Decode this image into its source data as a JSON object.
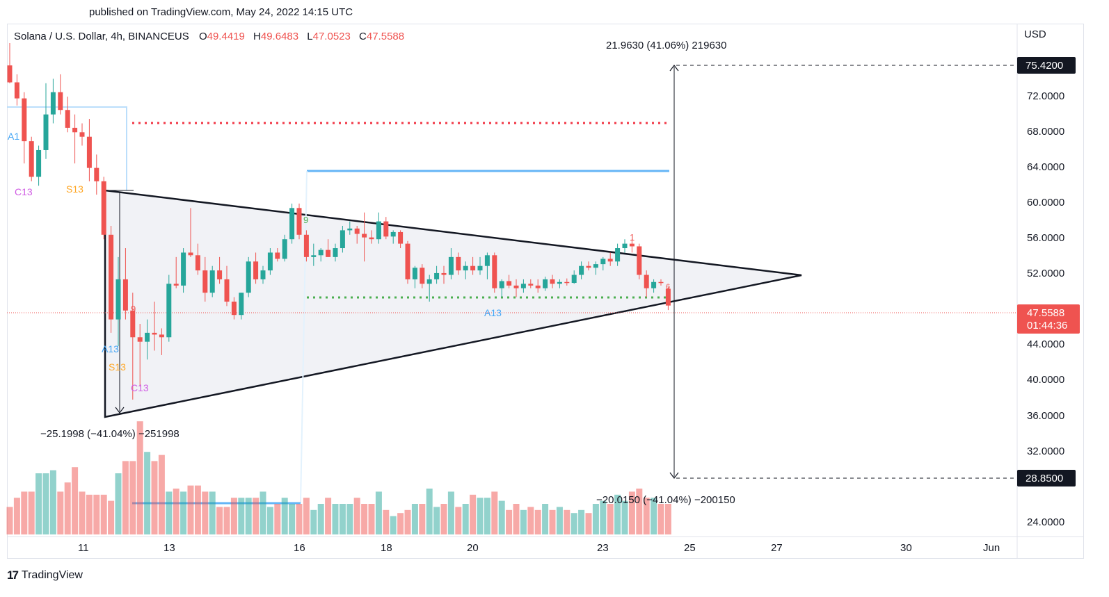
{
  "header": {
    "published": "published on TradingView.com, May 24, 2022 14:15 UTC"
  },
  "legend": {
    "symbol": "Solana / U.S. Dollar, 4h, BINANCEUS",
    "o_label": "O",
    "o_value": "49.4419",
    "h_label": "H",
    "h_value": "49.6483",
    "l_label": "L",
    "l_value": "47.0523",
    "c_label": "C",
    "c_value": "47.5588"
  },
  "price_axis": {
    "currency": "USD",
    "ticks": [
      "72.0000",
      "68.0000",
      "64.0000",
      "60.0000",
      "56.0000",
      "52.0000",
      "44.0000",
      "40.0000",
      "36.0000",
      "32.0000",
      "24.0000"
    ],
    "upper_target_label": "75.4200",
    "lower_target_label": "28.8500",
    "last_price_label": "47.5588",
    "countdown_label": "01:44:36"
  },
  "time_axis": {
    "ticks": [
      "11",
      "13",
      "16",
      "18",
      "20",
      "23",
      "25",
      "27",
      "30",
      "Jun"
    ]
  },
  "annotations": {
    "upper_measure": "21.9630 (41.06%) 219630",
    "lower_measure": "−20.0150 (−41.04%) −200150",
    "left_measure": "−25.1998 (−41.04%) −251998",
    "td_labels": [
      {
        "text": "A1",
        "color": "#42a5f5"
      },
      {
        "text": "C13",
        "color": "#d05ce3"
      },
      {
        "text": "S13",
        "color": "#ffa726"
      },
      {
        "text": "A13",
        "color": "#42a5f5"
      },
      {
        "text": "S13",
        "color": "#ffa726"
      },
      {
        "text": "C13",
        "color": "#d05ce3"
      },
      {
        "text": "9",
        "color": "#ef5350"
      },
      {
        "text": "9",
        "color": "#4caf50"
      },
      {
        "text": "A13",
        "color": "#42a5f5"
      },
      {
        "text": "1",
        "color": "#ef5350"
      },
      {
        "text": "6",
        "color": "#ef5350"
      }
    ]
  },
  "branding": {
    "logo_text": "TradingView"
  },
  "colors": {
    "up": "#26a69a",
    "down": "#ef5350",
    "resistance": "#f23645",
    "support": "#4caf50",
    "level_blue": "#64b5f6"
  },
  "chart_data": {
    "type": "candlestick",
    "title": "Solana / U.S. Dollar, 4h, BINANCEUS",
    "ylabel": "USD",
    "ylim": [
      22.5,
      79.5
    ],
    "x_ticks": [
      "11",
      "13",
      "16",
      "18",
      "20",
      "23",
      "25",
      "27",
      "30",
      "Jun"
    ],
    "candles": [
      {
        "o": 74.5,
        "h": 77.0,
        "l": 72.5,
        "c": 72.6
      },
      {
        "o": 72.6,
        "h": 73.5,
        "l": 70.0,
        "c": 70.8
      },
      {
        "o": 70.8,
        "h": 71.5,
        "l": 63.5,
        "c": 66.0
      },
      {
        "o": 66.0,
        "h": 66.5,
        "l": 61.5,
        "c": 62.0
      },
      {
        "o": 62.0,
        "h": 65.5,
        "l": 61.0,
        "c": 65.0
      },
      {
        "o": 65.0,
        "h": 72.5,
        "l": 64.0,
        "c": 69.0
      },
      {
        "o": 69.0,
        "h": 73.0,
        "l": 68.0,
        "c": 71.5
      },
      {
        "o": 71.5,
        "h": 73.5,
        "l": 69.0,
        "c": 69.5
      },
      {
        "o": 69.5,
        "h": 71.0,
        "l": 67.0,
        "c": 67.5
      },
      {
        "o": 67.5,
        "h": 69.0,
        "l": 63.5,
        "c": 67.0
      },
      {
        "o": 67.0,
        "h": 68.0,
        "l": 65.5,
        "c": 66.5
      },
      {
        "o": 66.5,
        "h": 68.5,
        "l": 61.5,
        "c": 63.0
      },
      {
        "o": 63.0,
        "h": 64.5,
        "l": 60.0,
        "c": 61.5
      },
      {
        "o": 61.5,
        "h": 62.0,
        "l": 55.0,
        "c": 55.5
      },
      {
        "o": 55.5,
        "h": 56.5,
        "l": 44.5,
        "c": 46.0
      },
      {
        "o": 46.0,
        "h": 53.0,
        "l": 43.0,
        "c": 50.5
      },
      {
        "o": 50.5,
        "h": 54.0,
        "l": 46.0,
        "c": 47.0
      },
      {
        "o": 47.0,
        "h": 49.0,
        "l": 37.0,
        "c": 44.0
      },
      {
        "o": 44.0,
        "h": 45.5,
        "l": 38.5,
        "c": 43.5
      },
      {
        "o": 43.5,
        "h": 46.0,
        "l": 41.5,
        "c": 44.5
      },
      {
        "o": 44.5,
        "h": 48.0,
        "l": 42.5,
        "c": 44.3
      },
      {
        "o": 44.3,
        "h": 45.0,
        "l": 42.0,
        "c": 44.0
      },
      {
        "o": 44.0,
        "h": 51.0,
        "l": 43.5,
        "c": 50.0
      },
      {
        "o": 50.0,
        "h": 53.0,
        "l": 49.5,
        "c": 49.8
      },
      {
        "o": 49.8,
        "h": 54.0,
        "l": 49.0,
        "c": 53.5
      },
      {
        "o": 53.5,
        "h": 58.5,
        "l": 53.0,
        "c": 53.2
      },
      {
        "o": 53.2,
        "h": 54.5,
        "l": 51.0,
        "c": 51.5
      },
      {
        "o": 51.5,
        "h": 53.0,
        "l": 48.0,
        "c": 49.0
      },
      {
        "o": 49.0,
        "h": 52.0,
        "l": 48.5,
        "c": 51.5
      },
      {
        "o": 51.5,
        "h": 53.0,
        "l": 50.0,
        "c": 50.5
      },
      {
        "o": 50.5,
        "h": 52.0,
        "l": 47.5,
        "c": 48.0
      },
      {
        "o": 48.0,
        "h": 48.5,
        "l": 46.0,
        "c": 46.5
      },
      {
        "o": 46.5,
        "h": 49.0,
        "l": 46.0,
        "c": 49.0
      },
      {
        "o": 49.0,
        "h": 53.0,
        "l": 48.5,
        "c": 52.5
      },
      {
        "o": 52.5,
        "h": 53.5,
        "l": 50.0,
        "c": 50.5
      },
      {
        "o": 50.5,
        "h": 52.0,
        "l": 50.0,
        "c": 51.5
      },
      {
        "o": 51.5,
        "h": 54.0,
        "l": 51.0,
        "c": 53.5
      },
      {
        "o": 53.5,
        "h": 54.0,
        "l": 52.5,
        "c": 52.8
      },
      {
        "o": 52.8,
        "h": 55.5,
        "l": 52.5,
        "c": 55.0
      },
      {
        "o": 55.0,
        "h": 59.0,
        "l": 54.5,
        "c": 58.5
      },
      {
        "o": 58.5,
        "h": 59.0,
        "l": 55.0,
        "c": 55.5
      },
      {
        "o": 55.5,
        "h": 56.0,
        "l": 52.5,
        "c": 53.0
      },
      {
        "o": 53.0,
        "h": 54.5,
        "l": 52.0,
        "c": 53.2
      },
      {
        "o": 53.2,
        "h": 54.0,
        "l": 52.5,
        "c": 53.8
      },
      {
        "o": 53.8,
        "h": 55.0,
        "l": 53.0,
        "c": 53.0
      },
      {
        "o": 53.0,
        "h": 54.5,
        "l": 52.5,
        "c": 54.0
      },
      {
        "o": 54.0,
        "h": 56.5,
        "l": 53.5,
        "c": 56.0
      },
      {
        "o": 56.0,
        "h": 57.0,
        "l": 55.5,
        "c": 56.2
      },
      {
        "o": 56.2,
        "h": 56.5,
        "l": 54.5,
        "c": 55.6
      },
      {
        "o": 55.6,
        "h": 58.0,
        "l": 52.5,
        "c": 55.2
      },
      {
        "o": 55.2,
        "h": 56.0,
        "l": 54.5,
        "c": 55.0
      },
      {
        "o": 55.0,
        "h": 58.0,
        "l": 54.5,
        "c": 57.0
      },
      {
        "o": 57.0,
        "h": 57.5,
        "l": 55.0,
        "c": 55.3
      },
      {
        "o": 55.3,
        "h": 56.0,
        "l": 54.5,
        "c": 55.8
      },
      {
        "o": 55.8,
        "h": 56.0,
        "l": 54.0,
        "c": 54.5
      },
      {
        "o": 54.5,
        "h": 54.8,
        "l": 50.0,
        "c": 50.5
      },
      {
        "o": 50.5,
        "h": 52.0,
        "l": 49.5,
        "c": 51.8
      },
      {
        "o": 51.8,
        "h": 52.2,
        "l": 49.5,
        "c": 50.0
      },
      {
        "o": 50.0,
        "h": 51.0,
        "l": 48.0,
        "c": 50.5
      },
      {
        "o": 50.5,
        "h": 52.0,
        "l": 50.0,
        "c": 51.2
      },
      {
        "o": 51.2,
        "h": 52.0,
        "l": 50.0,
        "c": 51.0
      },
      {
        "o": 51.0,
        "h": 54.0,
        "l": 50.5,
        "c": 53.0
      },
      {
        "o": 53.0,
        "h": 53.5,
        "l": 51.0,
        "c": 51.5
      },
      {
        "o": 51.5,
        "h": 52.5,
        "l": 50.5,
        "c": 52.0
      },
      {
        "o": 52.0,
        "h": 53.0,
        "l": 51.0,
        "c": 51.5
      },
      {
        "o": 51.5,
        "h": 53.0,
        "l": 51.0,
        "c": 52.0
      },
      {
        "o": 52.0,
        "h": 53.5,
        "l": 50.5,
        "c": 53.2
      },
      {
        "o": 53.2,
        "h": 53.5,
        "l": 49.0,
        "c": 49.5
      },
      {
        "o": 49.5,
        "h": 50.5,
        "l": 48.5,
        "c": 50.3
      },
      {
        "o": 50.3,
        "h": 51.0,
        "l": 49.5,
        "c": 49.8
      },
      {
        "o": 49.8,
        "h": 50.5,
        "l": 48.5,
        "c": 49.5
      },
      {
        "o": 49.5,
        "h": 50.5,
        "l": 49.0,
        "c": 50.0
      },
      {
        "o": 50.0,
        "h": 50.5,
        "l": 49.5,
        "c": 49.8
      },
      {
        "o": 49.8,
        "h": 50.5,
        "l": 49.0,
        "c": 49.5
      },
      {
        "o": 49.5,
        "h": 50.8,
        "l": 49.2,
        "c": 50.5
      },
      {
        "o": 50.5,
        "h": 51.0,
        "l": 49.5,
        "c": 50.0
      },
      {
        "o": 50.0,
        "h": 50.5,
        "l": 49.5,
        "c": 50.2
      },
      {
        "o": 50.2,
        "h": 50.6,
        "l": 49.8,
        "c": 50.1
      },
      {
        "o": 50.1,
        "h": 51.5,
        "l": 50.0,
        "c": 51.0
      },
      {
        "o": 51.0,
        "h": 52.5,
        "l": 50.5,
        "c": 52.0
      },
      {
        "o": 52.0,
        "h": 52.5,
        "l": 51.5,
        "c": 51.8
      },
      {
        "o": 51.8,
        "h": 52.5,
        "l": 51.0,
        "c": 52.2
      },
      {
        "o": 52.2,
        "h": 53.0,
        "l": 51.5,
        "c": 52.8
      },
      {
        "o": 52.8,
        "h": 53.5,
        "l": 52.0,
        "c": 52.5
      },
      {
        "o": 52.5,
        "h": 54.5,
        "l": 52.0,
        "c": 54.0
      },
      {
        "o": 54.0,
        "h": 55.0,
        "l": 53.5,
        "c": 54.5
      },
      {
        "o": 54.5,
        "h": 55.0,
        "l": 53.5,
        "c": 54.2
      },
      {
        "o": 54.2,
        "h": 54.5,
        "l": 50.5,
        "c": 51.0
      },
      {
        "o": 51.0,
        "h": 51.5,
        "l": 48.5,
        "c": 49.5
      },
      {
        "o": 49.5,
        "h": 50.5,
        "l": 49.0,
        "c": 50.2
      },
      {
        "o": 50.2,
        "h": 50.5,
        "l": 49.8,
        "c": 50.1
      },
      {
        "o": 49.4419,
        "h": 49.6483,
        "l": 47.0523,
        "c": 47.5588
      }
    ],
    "volume": [
      9,
      12,
      14,
      14,
      20,
      20,
      21,
      14,
      17,
      22,
      14,
      13,
      13,
      13,
      11,
      20,
      24,
      24,
      37,
      27,
      24,
      26,
      14,
      15,
      14,
      16,
      16,
      14,
      14,
      9,
      9,
      12,
      12,
      12,
      12,
      14,
      9,
      10,
      12,
      10,
      10,
      12,
      8,
      10,
      12,
      10,
      10,
      10,
      12,
      10,
      10,
      14,
      8,
      6,
      7,
      8,
      10,
      10,
      15,
      9,
      10,
      14,
      9,
      10,
      13,
      12,
      12,
      14,
      11,
      8,
      10,
      8,
      9,
      8,
      10,
      8,
      9,
      8,
      7,
      8,
      7,
      10,
      11,
      10,
      13,
      11,
      14,
      15,
      12,
      12,
      10,
      10
    ],
    "levels": [
      {
        "name": "red_dotted",
        "value": 69.0
      },
      {
        "name": "blue_upper",
        "value": 63.5
      },
      {
        "name": "green_dotted",
        "value": 49.2
      }
    ]
  }
}
